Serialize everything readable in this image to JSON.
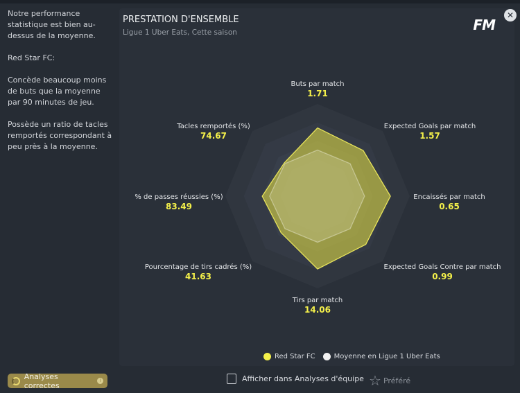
{
  "sidebar": {
    "paragraphs": [
      "Notre performance statistique est bien au-dessus de la moyenne.",
      "Red Star FC:",
      "Concède beaucoup moins de buts que la moyenne par 90 minutes de jeu.",
      "Possède un ratio de tacles remportés correspondant à peu près à la moyenne."
    ],
    "badge": "Analyses correctes"
  },
  "card": {
    "title": "PRESTATION D'ENSEMBLE",
    "subtitle": "Ligue 1 Uber Eats, Cette saison",
    "logo": "FM"
  },
  "close_icon": "✕",
  "chart_data": {
    "type": "radar",
    "axes": [
      {
        "label": "Buts par match",
        "value": "1.71",
        "team": 0.74,
        "avg": 0.5
      },
      {
        "label": "Expected Goals par match",
        "value": "1.57",
        "team": 0.7,
        "avg": 0.5
      },
      {
        "label": "Encaissés par match",
        "value": "0.65",
        "team": 0.79,
        "avg": 0.51
      },
      {
        "label": "Expected Goals Contre par match",
        "value": "0.99",
        "team": 0.74,
        "avg": 0.5
      },
      {
        "label": "Tirs par match",
        "value": "14.06",
        "team": 0.79,
        "avg": 0.5
      },
      {
        "label": "Pourcentage de tirs cadrés (%)",
        "value": "41.63",
        "team": 0.56,
        "avg": 0.5
      },
      {
        "label": "% de passes réussies (%)",
        "value": "83.49",
        "team": 0.6,
        "avg": 0.52
      },
      {
        "label": "Tacles remportés (%)",
        "value": "74.67",
        "team": 0.51,
        "avg": 0.5
      }
    ],
    "series": [
      {
        "name": "Red Star FC",
        "color": "#f4f04a"
      },
      {
        "name": "Moyenne en Ligue 1 Uber Eats",
        "color": "#f2f2f2"
      }
    ]
  },
  "footer": {
    "show_label": "Afficher dans Analyses d'équipe",
    "fav_label": "Préféré"
  }
}
